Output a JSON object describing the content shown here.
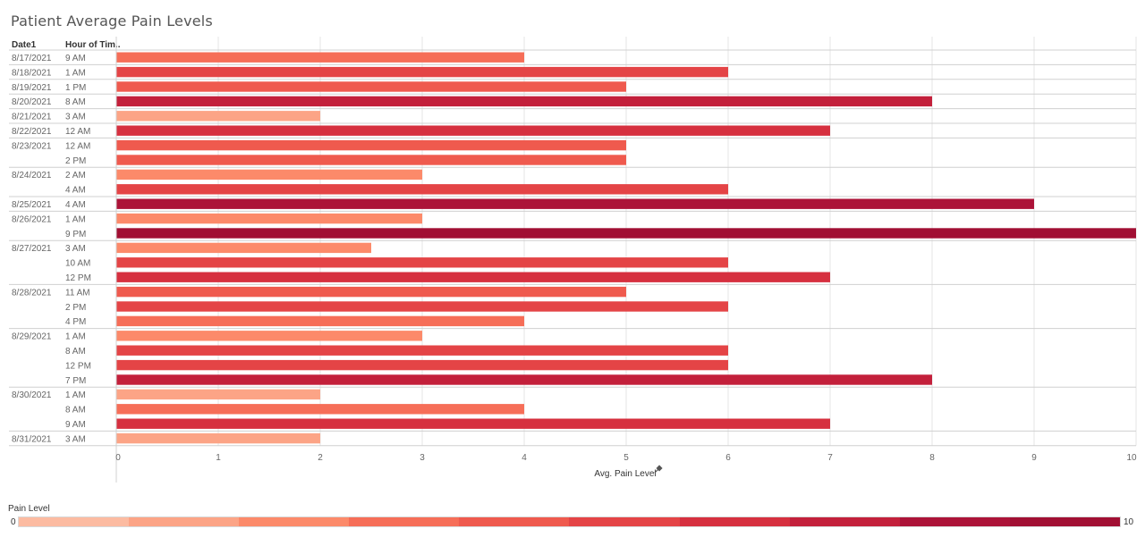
{
  "title": "Patient Average Pain Levels",
  "headers": {
    "date": "Date1",
    "hour": "Hour of Tim.."
  },
  "colors": {
    "scale": [
      "#fcbba1",
      "#fca486",
      "#fc8a6a",
      "#f66e58",
      "#ef5a4e",
      "#e44446",
      "#d6303f",
      "#c3203b",
      "#ac1338",
      "#a10f33"
    ],
    "grid": "#e6e6e6",
    "rule": "#d0d0d0"
  },
  "chart_data": {
    "type": "bar",
    "orientation": "horizontal",
    "xlabel": "Avg. Pain Level",
    "xlim": [
      0,
      10
    ],
    "ticks": [
      0,
      1,
      2,
      3,
      4,
      5,
      6,
      7,
      8,
      9,
      10
    ],
    "groups": [
      {
        "date": "8/17/2021",
        "rows": [
          {
            "hour": "9 AM",
            "value": 4
          }
        ]
      },
      {
        "date": "8/18/2021",
        "rows": [
          {
            "hour": "1 AM",
            "value": 6
          }
        ]
      },
      {
        "date": "8/19/2021",
        "rows": [
          {
            "hour": "1 PM",
            "value": 5
          }
        ]
      },
      {
        "date": "8/20/2021",
        "rows": [
          {
            "hour": "8 AM",
            "value": 8
          }
        ]
      },
      {
        "date": "8/21/2021",
        "rows": [
          {
            "hour": "3 AM",
            "value": 2
          }
        ]
      },
      {
        "date": "8/22/2021",
        "rows": [
          {
            "hour": "12 AM",
            "value": 7
          }
        ]
      },
      {
        "date": "8/23/2021",
        "rows": [
          {
            "hour": "12 AM",
            "value": 5
          },
          {
            "hour": "2 PM",
            "value": 5
          }
        ]
      },
      {
        "date": "8/24/2021",
        "rows": [
          {
            "hour": "2 AM",
            "value": 3
          },
          {
            "hour": "4 AM",
            "value": 6
          }
        ]
      },
      {
        "date": "8/25/2021",
        "rows": [
          {
            "hour": "4 AM",
            "value": 9
          }
        ]
      },
      {
        "date": "8/26/2021",
        "rows": [
          {
            "hour": "1 AM",
            "value": 3
          },
          {
            "hour": "9 PM",
            "value": 10
          }
        ]
      },
      {
        "date": "8/27/2021",
        "rows": [
          {
            "hour": "3 AM",
            "value": 2.5
          },
          {
            "hour": "10 AM",
            "value": 6
          },
          {
            "hour": "12 PM",
            "value": 7
          }
        ]
      },
      {
        "date": "8/28/2021",
        "rows": [
          {
            "hour": "11 AM",
            "value": 5
          },
          {
            "hour": "2 PM",
            "value": 6
          },
          {
            "hour": "4 PM",
            "value": 4
          }
        ]
      },
      {
        "date": "8/29/2021",
        "rows": [
          {
            "hour": "1 AM",
            "value": 3
          },
          {
            "hour": "8 AM",
            "value": 6
          },
          {
            "hour": "12 PM",
            "value": 6
          },
          {
            "hour": "7 PM",
            "value": 8
          }
        ]
      },
      {
        "date": "8/30/2021",
        "rows": [
          {
            "hour": "1 AM",
            "value": 2
          },
          {
            "hour": "8 AM",
            "value": 4
          },
          {
            "hour": "9 AM",
            "value": 7
          }
        ]
      },
      {
        "date": "8/31/2021",
        "rows": [
          {
            "hour": "3 AM",
            "value": 2
          }
        ]
      }
    ]
  },
  "legend": {
    "title": "Pain Level",
    "min": "0",
    "max": "10"
  }
}
